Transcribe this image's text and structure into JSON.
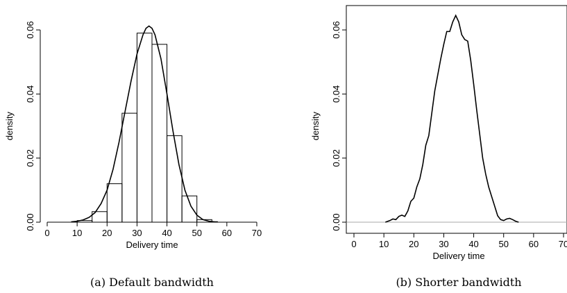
{
  "chart_data": [
    {
      "type": "bar",
      "caption": "(a) Default bandwidth",
      "xlabel": "Delivery time",
      "ylabel": "density",
      "xlim": [
        0,
        70
      ],
      "ylim": [
        0,
        0.065
      ],
      "xticks": [
        "0",
        "10",
        "20",
        "30",
        "40",
        "50",
        "60",
        "70"
      ],
      "yticks": [
        "0.00",
        "0.02",
        "0.04",
        "0.06"
      ],
      "grid": false,
      "histogram": {
        "bin_edges": [
          10,
          15,
          20,
          25,
          30,
          35,
          40,
          45,
          50,
          55
        ],
        "values": [
          0.0005,
          0.0033,
          0.012,
          0.034,
          0.059,
          0.0555,
          0.027,
          0.0082,
          0.0008
        ]
      },
      "density_curve": {
        "x": [
          8,
          10,
          12,
          14,
          16,
          18,
          20,
          22,
          24,
          26,
          28,
          30,
          32,
          33,
          34,
          35,
          36,
          38,
          40,
          42,
          44,
          46,
          48,
          50,
          52,
          54,
          56,
          57
        ],
        "y": [
          0.0001,
          0.0003,
          0.0007,
          0.0015,
          0.003,
          0.0058,
          0.01,
          0.0165,
          0.025,
          0.0345,
          0.044,
          0.0525,
          0.0585,
          0.0605,
          0.0612,
          0.0605,
          0.0585,
          0.051,
          0.04,
          0.0285,
          0.018,
          0.01,
          0.005,
          0.0022,
          0.0008,
          0.0003,
          0.0001,
          0.0001
        ]
      }
    },
    {
      "type": "line",
      "caption": "(b) Shorter bandwidth",
      "xlabel": "Delivery time",
      "ylabel": "density",
      "xlim": [
        0,
        70
      ],
      "ylim": [
        0,
        0.065
      ],
      "xticks": [
        "0",
        "10",
        "20",
        "30",
        "40",
        "50",
        "60",
        "70"
      ],
      "yticks": [
        "0.00",
        "0.02",
        "0.04",
        "0.06"
      ],
      "grid": false,
      "baseline": 0,
      "density_curve": {
        "x": [
          10.5,
          12,
          13,
          14,
          15,
          16,
          17,
          18,
          19,
          20,
          21,
          22,
          23,
          24,
          25,
          26,
          27,
          28,
          29,
          30,
          31,
          32,
          33,
          34,
          35,
          36,
          37,
          38,
          39,
          40,
          41,
          42,
          43,
          44,
          45,
          46,
          47,
          48,
          49,
          50,
          51,
          52,
          53,
          54,
          55
        ],
        "y": [
          0.0,
          0.0005,
          0.001,
          0.0008,
          0.0018,
          0.0022,
          0.0018,
          0.0035,
          0.0065,
          0.0075,
          0.011,
          0.0135,
          0.018,
          0.024,
          0.027,
          0.034,
          0.041,
          0.046,
          0.051,
          0.0555,
          0.0595,
          0.0595,
          0.0625,
          0.0645,
          0.0625,
          0.0585,
          0.057,
          0.0565,
          0.0505,
          0.043,
          0.035,
          0.0275,
          0.02,
          0.015,
          0.011,
          0.008,
          0.005,
          0.002,
          0.0008,
          0.0005,
          0.001,
          0.0012,
          0.0008,
          0.0003,
          0.0
        ]
      }
    }
  ]
}
